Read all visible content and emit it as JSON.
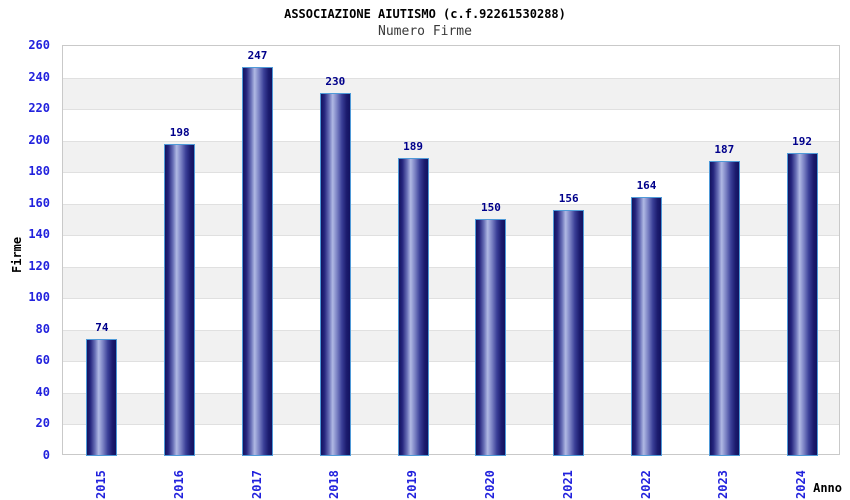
{
  "header": {
    "title": "ASSOCIAZIONE AIUTISMO (c.f.92261530288)",
    "subtitle": "Numero Firme"
  },
  "chart_data": {
    "type": "bar",
    "title": "ASSOCIAZIONE AIUTISMO (c.f.92261530288)",
    "subtitle": "Numero Firme",
    "categories": [
      "2015",
      "2016",
      "2017",
      "2018",
      "2019",
      "2020",
      "2021",
      "2022",
      "2023",
      "2024"
    ],
    "values": [
      74,
      198,
      247,
      230,
      189,
      150,
      156,
      164,
      187,
      192
    ],
    "xlabel": "Anno",
    "ylabel": "Firme",
    "ylim": [
      0,
      260
    ],
    "ytick_step": 20,
    "yticks": [
      0,
      20,
      40,
      60,
      80,
      100,
      120,
      140,
      160,
      180,
      200,
      220,
      240,
      260
    ],
    "grid": true,
    "legend": false,
    "band_stripes": true
  },
  "colors": {
    "title": "#000000",
    "subtitle": "#3a3a3a",
    "axis_tick_label": "#2222dd",
    "value_label": "#00008b",
    "bar_edge_dark": "#131360",
    "bar_mid_light": "#b0b9e4",
    "bar_border": "#4f9ad8",
    "band_fill": "#f1f1f1",
    "gridline": "#e0e0e0",
    "plot_border": "#c9c9c9",
    "background": "#ffffff"
  }
}
